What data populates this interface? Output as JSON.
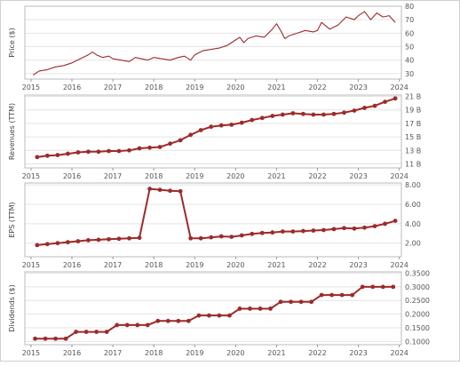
{
  "colors": {
    "series": "#9e2a2a",
    "panel_border": "#bbbbbb",
    "grid": "#e4e4e4",
    "outer_border": "#d0d0d0",
    "text": "#555555"
  },
  "chart_data": [
    {
      "type": "line",
      "ylabel": "Price ($)",
      "ylim": [
        26,
        80
      ],
      "yticks": [
        "30",
        "40",
        "50",
        "60",
        "70",
        "80"
      ],
      "ytick_values": [
        30,
        40,
        50,
        60,
        70,
        80
      ],
      "xticks": [
        "2015",
        "2016",
        "2017",
        "2018",
        "2019",
        "2020",
        "2021",
        "2022",
        "2023",
        "2024"
      ],
      "xtick_values": [
        2015,
        2016,
        2017,
        2018,
        2019,
        2020,
        2021,
        2022,
        2023,
        2024
      ],
      "grid": true,
      "x": [
        2015.05,
        2015.2,
        2015.4,
        2015.6,
        2015.8,
        2016.0,
        2016.2,
        2016.4,
        2016.5,
        2016.6,
        2016.75,
        2016.9,
        2017.0,
        2017.2,
        2017.4,
        2017.55,
        2017.7,
        2017.85,
        2018.0,
        2018.2,
        2018.4,
        2018.6,
        2018.75,
        2018.9,
        2019.0,
        2019.2,
        2019.4,
        2019.6,
        2019.8,
        2020.0,
        2020.1,
        2020.2,
        2020.3,
        2020.5,
        2020.7,
        2020.9,
        2021.0,
        2021.1,
        2021.2,
        2021.3,
        2021.5,
        2021.7,
        2021.9,
        2022.0,
        2022.1,
        2022.3,
        2022.5,
        2022.7,
        2022.9,
        2023.0,
        2023.15,
        2023.3,
        2023.45,
        2023.6,
        2023.75,
        2023.9
      ],
      "y": [
        29,
        32,
        33,
        35,
        36,
        38,
        41,
        44,
        46,
        44,
        42,
        43,
        41,
        40,
        39,
        42,
        41,
        40,
        42,
        41,
        40,
        42,
        43,
        40,
        44,
        47,
        48,
        49,
        51,
        55,
        57,
        53,
        56,
        58,
        57,
        63,
        67,
        62,
        56,
        58,
        60,
        62,
        61,
        62,
        68,
        63,
        66,
        72,
        70,
        73,
        76,
        70,
        75,
        72,
        73,
        68
      ],
      "xlim": [
        2014.85,
        2024.05
      ]
    },
    {
      "type": "line",
      "ylabel": "Revenues (TTM)",
      "ylim": [
        10.4,
        21.2
      ],
      "yticks": [
        "11 B",
        "13 B",
        "15 B",
        "17 B",
        "19 B",
        "21 B"
      ],
      "ytick_values": [
        11,
        13,
        15,
        17,
        19,
        21
      ],
      "xticks": [
        "2015",
        "2016",
        "2017",
        "2018",
        "2019",
        "2020",
        "2021",
        "2022",
        "2023",
        "2024"
      ],
      "xtick_values": [
        2015,
        2016,
        2017,
        2018,
        2019,
        2020,
        2021,
        2022,
        2023,
        2024
      ],
      "grid": true,
      "xlim": [
        2014.85,
        2024.05
      ],
      "x": [
        2015.15,
        2015.4,
        2015.65,
        2015.9,
        2016.15,
        2016.4,
        2016.65,
        2016.9,
        2017.15,
        2017.4,
        2017.65,
        2017.9,
        2018.15,
        2018.4,
        2018.65,
        2018.9,
        2019.15,
        2019.4,
        2019.65,
        2019.9,
        2020.15,
        2020.4,
        2020.65,
        2020.9,
        2021.15,
        2021.4,
        2021.65,
        2021.9,
        2022.15,
        2022.4,
        2022.65,
        2022.9,
        2023.15,
        2023.4,
        2023.65,
        2023.9
      ],
      "y": [
        12.0,
        12.2,
        12.3,
        12.5,
        12.7,
        12.8,
        12.8,
        12.9,
        12.9,
        13.0,
        13.3,
        13.4,
        13.5,
        14.0,
        14.5,
        15.3,
        16.0,
        16.5,
        16.7,
        16.8,
        17.1,
        17.5,
        17.8,
        18.1,
        18.3,
        18.5,
        18.4,
        18.3,
        18.3,
        18.4,
        18.6,
        18.9,
        19.3,
        19.6,
        20.2,
        20.7
      ]
    },
    {
      "type": "line",
      "ylabel": "EPS (TTM)",
      "ylim": [
        0.6,
        8.2
      ],
      "yticks": [
        "2.00",
        "4.00",
        "6.00",
        "8.00"
      ],
      "ytick_values": [
        2,
        4,
        6,
        8
      ],
      "xticks": [
        "2015",
        "2016",
        "2017",
        "2018",
        "2019",
        "2020",
        "2021",
        "2022",
        "2023",
        "2024"
      ],
      "xtick_values": [
        2015,
        2016,
        2017,
        2018,
        2019,
        2020,
        2021,
        2022,
        2023,
        2024
      ],
      "grid": true,
      "xlim": [
        2014.85,
        2024.05
      ],
      "x": [
        2015.15,
        2015.4,
        2015.65,
        2015.9,
        2016.15,
        2016.4,
        2016.65,
        2016.9,
        2017.15,
        2017.4,
        2017.65,
        2017.9,
        2018.15,
        2018.4,
        2018.65,
        2018.9,
        2019.15,
        2019.4,
        2019.65,
        2019.9,
        2020.15,
        2020.4,
        2020.65,
        2020.9,
        2021.15,
        2021.4,
        2021.65,
        2021.9,
        2022.15,
        2022.4,
        2022.65,
        2022.9,
        2023.15,
        2023.4,
        2023.65,
        2023.9
      ],
      "y": [
        1.8,
        1.9,
        2.0,
        2.1,
        2.2,
        2.3,
        2.35,
        2.4,
        2.45,
        2.5,
        2.55,
        7.6,
        7.5,
        7.4,
        7.35,
        2.5,
        2.5,
        2.6,
        2.7,
        2.65,
        2.8,
        2.95,
        3.05,
        3.1,
        3.2,
        3.2,
        3.25,
        3.3,
        3.35,
        3.45,
        3.55,
        3.5,
        3.6,
        3.75,
        4.0,
        4.3
      ]
    },
    {
      "type": "line",
      "ylabel": "Dividends ($)",
      "ylim": [
        0.088,
        0.355
      ],
      "yticks": [
        "0.1000",
        "0.1500",
        "0.2000",
        "0.2500",
        "0.3000",
        "0.3500"
      ],
      "ytick_values": [
        0.1,
        0.15,
        0.2,
        0.25,
        0.3,
        0.35
      ],
      "xticks": [
        "2015",
        "2016",
        "2017",
        "2018",
        "2019",
        "2020",
        "2021",
        "2022",
        "2023",
        "2024"
      ],
      "xtick_values": [
        2015,
        2016,
        2017,
        2018,
        2019,
        2020,
        2021,
        2022,
        2023,
        2024
      ],
      "grid": true,
      "xlim": [
        2014.85,
        2024.05
      ],
      "x": [
        2015.1,
        2015.35,
        2015.6,
        2015.85,
        2016.1,
        2016.35,
        2016.6,
        2016.85,
        2017.1,
        2017.35,
        2017.6,
        2017.85,
        2018.1,
        2018.35,
        2018.6,
        2018.85,
        2019.1,
        2019.35,
        2019.6,
        2019.85,
        2020.1,
        2020.35,
        2020.6,
        2020.85,
        2021.1,
        2021.35,
        2021.6,
        2021.85,
        2022.1,
        2022.35,
        2022.6,
        2022.85,
        2023.1,
        2023.35,
        2023.6,
        2023.85
      ],
      "y": [
        0.11,
        0.11,
        0.11,
        0.11,
        0.135,
        0.135,
        0.135,
        0.135,
        0.16,
        0.16,
        0.16,
        0.16,
        0.175,
        0.175,
        0.175,
        0.175,
        0.195,
        0.195,
        0.195,
        0.195,
        0.22,
        0.22,
        0.22,
        0.22,
        0.245,
        0.245,
        0.245,
        0.245,
        0.27,
        0.27,
        0.27,
        0.27,
        0.3,
        0.3,
        0.3,
        0.3
      ]
    }
  ]
}
